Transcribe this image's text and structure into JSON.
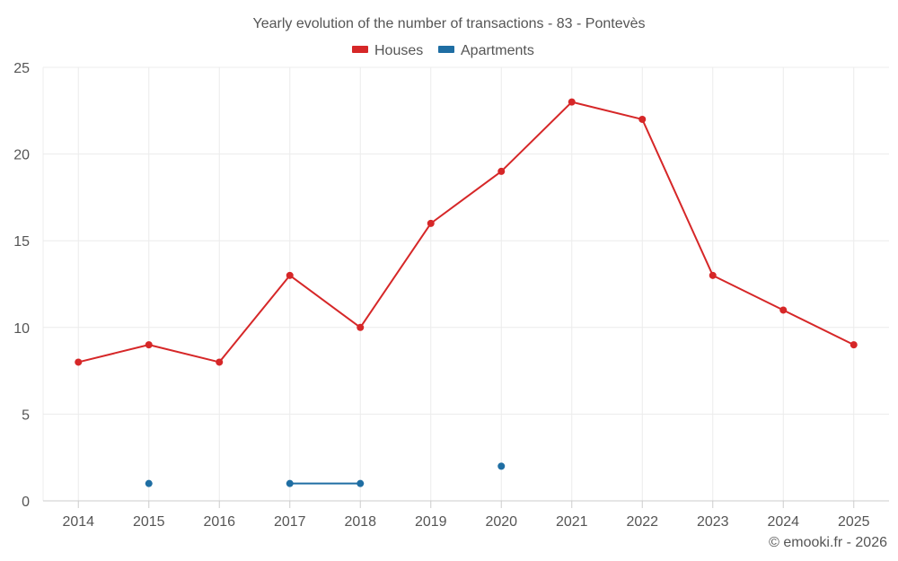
{
  "chart_data": {
    "type": "line",
    "title": "Yearly evolution of the number of transactions - 83 - Pontevès",
    "xlabel": "",
    "ylabel": "",
    "x": [
      "2014",
      "2015",
      "2016",
      "2017",
      "2018",
      "2019",
      "2020",
      "2021",
      "2022",
      "2023",
      "2024",
      "2025"
    ],
    "ylim": [
      0,
      25
    ],
    "yticks": [
      "0",
      "5",
      "10",
      "15",
      "20",
      "25"
    ],
    "grid": true,
    "legend_position": "top-center",
    "series": [
      {
        "name": "Houses",
        "color": "#d62728",
        "values": [
          8,
          9,
          8,
          13,
          10,
          16,
          19,
          23,
          22,
          13,
          11,
          9
        ]
      },
      {
        "name": "Apartments",
        "color": "#1f6ea3",
        "values": [
          null,
          1,
          null,
          1,
          1,
          null,
          2,
          null,
          null,
          null,
          null,
          null
        ]
      }
    ],
    "credit": "© emooki.fr - 2026"
  }
}
